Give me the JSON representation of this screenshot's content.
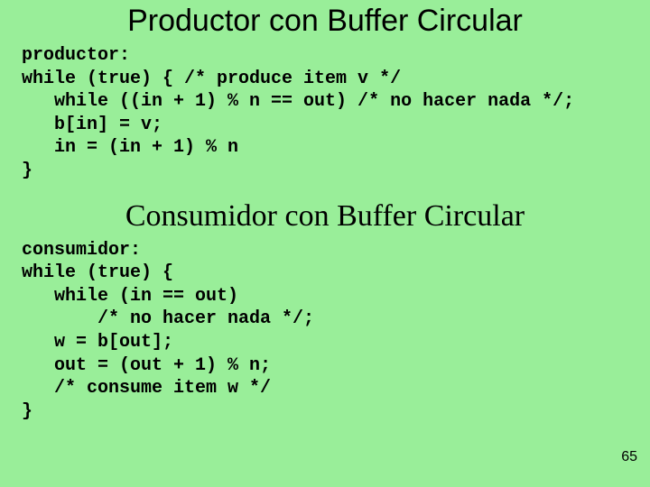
{
  "colors": {
    "background": "#99ee99",
    "text": "#000000"
  },
  "title_fontsize": 34,
  "code_fontsize": 20,
  "pagenum_fontsize": 16,
  "producer": {
    "title": "Productor con Buffer Circular",
    "lines": {
      "l0": "productor:",
      "l1": "while (true) { /* produce item v */",
      "l2": "   while ((in + 1) % n == out) /* no hacer nada */;",
      "l3": "   b[in] = v;",
      "l4": "   in = (in + 1) % n",
      "l5": "}"
    }
  },
  "consumer": {
    "title": "Consumidor con Buffer Circular",
    "lines": {
      "l0": "consumidor:",
      "l1": "while (true) {",
      "l2": "   while (in == out)",
      "l3": "       /* no hacer nada */;",
      "l4": "   w = b[out];",
      "l5": "   out = (out + 1) % n;",
      "l6": "   /* consume item w */",
      "l7": "}"
    }
  },
  "page_number": "65"
}
